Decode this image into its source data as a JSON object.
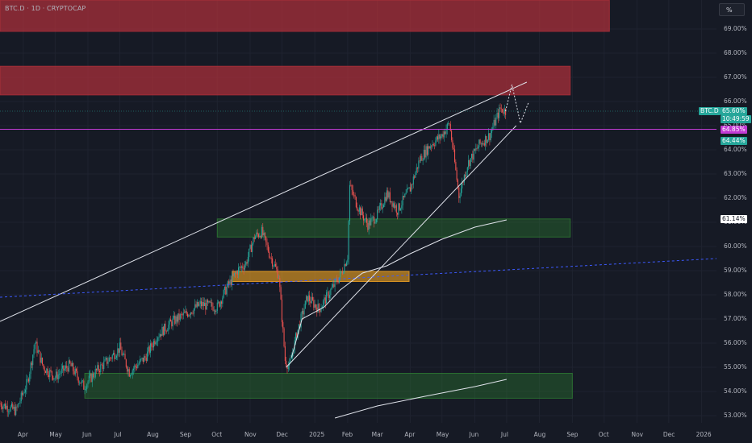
{
  "header": {
    "symbol_title": "BTC.D · 1D · CRYPTOCAP",
    "scale_button": "%"
  },
  "colors": {
    "background": "#161a25",
    "grid": "#1f2330",
    "up_candle": "#26a69a",
    "down_candle": "#ef5350",
    "resistance_zone": "#b2303a",
    "support_zone": "#2e7d32",
    "mid_zone": "#f5a623",
    "trendline": "#e0e3eb",
    "dashed_line": "#3d5afe",
    "magenta_line": "#c23bd4"
  },
  "badges": {
    "symbol": "BTC.D",
    "price": "65.60%",
    "countdown": "10:49:59",
    "purple_level": "64.85%",
    "green_level": "64.44%",
    "white_level": "61.14%"
  },
  "chart_data": {
    "type": "candlestick",
    "y_axis": {
      "unit": "%",
      "range": [
        52.7,
        70.2
      ],
      "ticks": [
        "53.00%",
        "54.00%",
        "55.00%",
        "56.00%",
        "57.00%",
        "58.00%",
        "59.00%",
        "60.00%",
        "61.00%",
        "62.00%",
        "63.00%",
        "64.00%",
        "65.00%",
        "66.00%",
        "67.00%",
        "68.00%",
        "69.00%"
      ],
      "tick_values": [
        53,
        54,
        55,
        56,
        57,
        58,
        59,
        60,
        61,
        62,
        63,
        64,
        65,
        66,
        67,
        68,
        69
      ]
    },
    "x_axis": {
      "range": [
        "2024-03-10",
        "2026-01-15"
      ],
      "ticks": [
        {
          "label": "Apr",
          "date": "2024-04-01"
        },
        {
          "label": "May",
          "date": "2024-05-01"
        },
        {
          "label": "Jun",
          "date": "2024-06-01"
        },
        {
          "label": "Jul",
          "date": "2024-07-01"
        },
        {
          "label": "Aug",
          "date": "2024-08-01"
        },
        {
          "label": "Sep",
          "date": "2024-09-01"
        },
        {
          "label": "Oct",
          "date": "2024-10-01"
        },
        {
          "label": "Nov",
          "date": "2024-11-01"
        },
        {
          "label": "Dec",
          "date": "2024-12-01"
        },
        {
          "label": "2025",
          "date": "2025-01-01"
        },
        {
          "label": "Feb",
          "date": "2025-02-01"
        },
        {
          "label": "Mar",
          "date": "2025-03-01"
        },
        {
          "label": "Apr",
          "date": "2025-04-01"
        },
        {
          "label": "May",
          "date": "2025-05-01"
        },
        {
          "label": "Jun",
          "date": "2025-06-01"
        },
        {
          "label": "Jul",
          "date": "2025-07-01"
        },
        {
          "label": "Aug",
          "date": "2025-08-01"
        },
        {
          "label": "Sep",
          "date": "2025-09-01"
        },
        {
          "label": "Oct",
          "date": "2025-10-01"
        },
        {
          "label": "Nov",
          "date": "2025-11-01"
        },
        {
          "label": "Dec",
          "date": "2025-12-01"
        },
        {
          "label": "2026",
          "date": "2026-01-01"
        }
      ]
    },
    "price_path": [
      [
        "2024-03-10",
        53.5
      ],
      [
        "2024-03-25",
        53.2
      ],
      [
        "2024-04-05",
        54.4
      ],
      [
        "2024-04-12",
        56.0
      ],
      [
        "2024-04-20",
        55.0
      ],
      [
        "2024-05-01",
        54.6
      ],
      [
        "2024-05-15",
        55.1
      ],
      [
        "2024-05-28",
        54.2
      ],
      [
        "2024-06-08",
        54.8
      ],
      [
        "2024-06-20",
        55.3
      ],
      [
        "2024-07-01",
        55.8
      ],
      [
        "2024-07-10",
        54.8
      ],
      [
        "2024-07-25",
        55.4
      ],
      [
        "2024-08-05",
        56.3
      ],
      [
        "2024-08-20",
        56.9
      ],
      [
        "2024-09-01",
        57.2
      ],
      [
        "2024-09-15",
        57.6
      ],
      [
        "2024-10-01",
        57.5
      ],
      [
        "2024-10-10",
        58.3
      ],
      [
        "2024-10-20",
        59.0
      ],
      [
        "2024-10-28",
        59.3
      ],
      [
        "2024-11-05",
        60.4
      ],
      [
        "2024-11-12",
        60.6
      ],
      [
        "2024-11-20",
        59.6
      ],
      [
        "2024-11-28",
        58.8
      ],
      [
        "2024-12-04",
        55.3
      ],
      [
        "2024-12-08",
        55.0
      ],
      [
        "2024-12-15",
        56.4
      ],
      [
        "2024-12-25",
        57.9
      ],
      [
        "2025-01-05",
        57.4
      ],
      [
        "2025-01-15",
        58.1
      ],
      [
        "2025-01-25",
        58.8
      ],
      [
        "2025-02-01",
        59.6
      ],
      [
        "2025-02-03",
        62.5
      ],
      [
        "2025-02-10",
        61.7
      ],
      [
        "2025-02-20",
        60.9
      ],
      [
        "2025-03-01",
        61.3
      ],
      [
        "2025-03-10",
        62.2
      ],
      [
        "2025-03-20",
        61.5
      ],
      [
        "2025-04-01",
        62.4
      ],
      [
        "2025-04-10",
        63.6
      ],
      [
        "2025-04-20",
        64.2
      ],
      [
        "2025-05-01",
        64.6
      ],
      [
        "2025-05-08",
        65.1
      ],
      [
        "2025-05-12",
        63.8
      ],
      [
        "2025-05-17",
        62.1
      ],
      [
        "2025-05-25",
        63.4
      ],
      [
        "2025-06-05",
        64.2
      ],
      [
        "2025-06-15",
        64.6
      ],
      [
        "2025-06-25",
        65.7
      ],
      [
        "2025-06-30",
        65.6
      ]
    ],
    "zones": [
      {
        "type": "resistance",
        "from": "2024-03-10",
        "to": "2025-10-06",
        "y1": 68.9,
        "y2": 70.2
      },
      {
        "type": "resistance",
        "from": "2024-03-10",
        "to": "2025-08-30",
        "y1": 66.27,
        "y2": 67.46
      },
      {
        "type": "support",
        "from": "2024-10-01",
        "to": "2025-08-30",
        "y1": 60.39,
        "y2": 61.14
      },
      {
        "type": "mid",
        "from": "2024-10-15",
        "to": "2025-03-31",
        "y1": 58.55,
        "y2": 58.97
      },
      {
        "type": "support",
        "from": "2024-05-29",
        "to": "2025-09-01",
        "y1": 53.72,
        "y2": 54.75
      }
    ],
    "trendlines": [
      {
        "from": [
          "2024-03-10",
          56.9
        ],
        "to": [
          "2025-07-20",
          66.8
        ],
        "style": "solid"
      },
      {
        "from": [
          "2024-12-05",
          55.0
        ],
        "to": [
          "2025-07-10",
          65.0
        ],
        "style": "solid"
      },
      {
        "from": [
          "2024-03-10",
          57.9
        ],
        "to": [
          "2026-01-15",
          59.5
        ],
        "style": "dashed"
      }
    ],
    "moving_average_short": [
      [
        "2024-12-10",
        55.4
      ],
      [
        "2024-12-20",
        57.0
      ],
      [
        "2025-01-10",
        57.5
      ],
      [
        "2025-01-25",
        58.2
      ],
      [
        "2025-02-15",
        58.9
      ],
      [
        "2025-03-10",
        59.2
      ],
      [
        "2025-04-01",
        59.7
      ],
      [
        "2025-05-01",
        60.3
      ],
      [
        "2025-06-01",
        60.8
      ],
      [
        "2025-07-01",
        61.1
      ]
    ],
    "moving_average_long": [
      [
        "2025-01-20",
        52.9
      ],
      [
        "2025-03-01",
        53.4
      ],
      [
        "2025-04-15",
        53.8
      ],
      [
        "2025-06-01",
        54.2
      ],
      [
        "2025-07-01",
        54.5
      ]
    ],
    "projection": [
      [
        "2025-06-30",
        65.6
      ],
      [
        "2025-07-06",
        66.7
      ],
      [
        "2025-07-14",
        65.1
      ],
      [
        "2025-07-22",
        66.0
      ]
    ],
    "levels": [
      {
        "name": "purple",
        "value": 64.85
      },
      {
        "name": "green",
        "value": 64.44
      },
      {
        "name": "current",
        "value": 65.6
      }
    ]
  }
}
